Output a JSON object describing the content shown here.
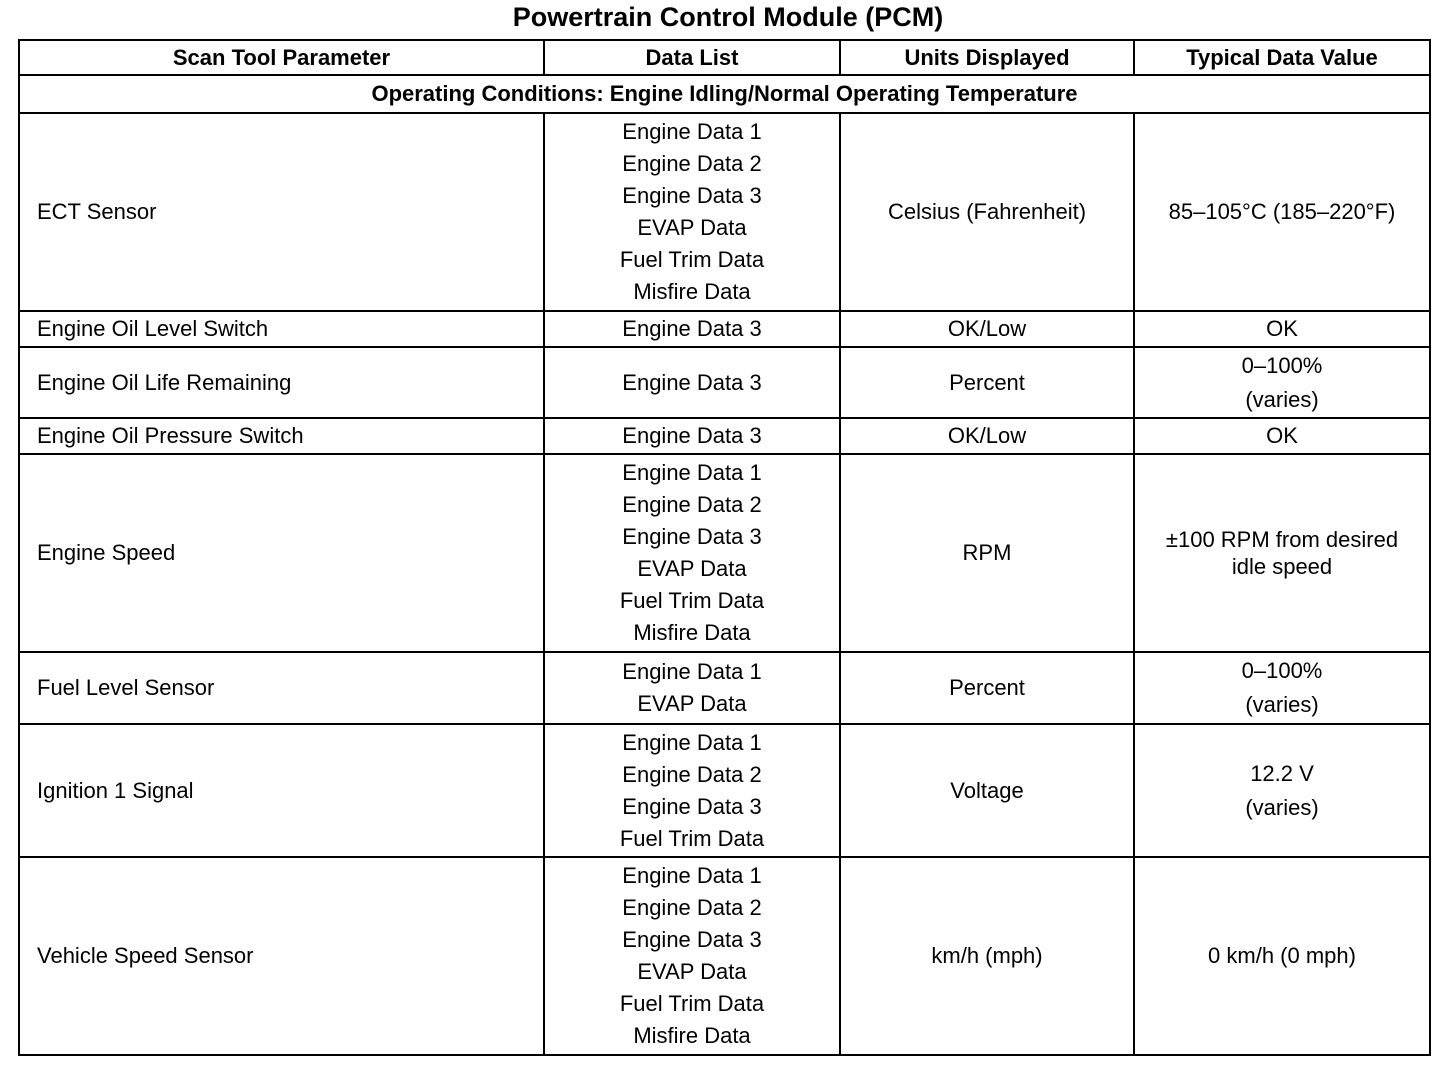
{
  "title": "Powertrain Control Module (PCM)",
  "table": {
    "headers": [
      "Scan Tool Parameter",
      "Data List",
      "Units Displayed",
      "Typical Data Value"
    ],
    "section": "Operating Conditions: Engine Idling/Normal Operating Temperature",
    "rows": [
      {
        "parameter": "ECT Sensor",
        "data_list": [
          "Engine Data 1",
          "Engine Data 2",
          "Engine Data 3",
          "EVAP Data",
          "Fuel Trim Data",
          "Misfire Data"
        ],
        "units": "Celsius (Fahrenheit)",
        "typical": [
          "85–105°C (185–220°F)"
        ]
      },
      {
        "parameter": "Engine Oil Level Switch",
        "data_list": [
          "Engine Data 3"
        ],
        "units": "OK/Low",
        "typical": [
          "OK"
        ]
      },
      {
        "parameter": "Engine Oil Life Remaining",
        "data_list": [
          "Engine Data 3"
        ],
        "units": "Percent",
        "typical": [
          "0–100%",
          "(varies)"
        ]
      },
      {
        "parameter": "Engine Oil Pressure Switch",
        "data_list": [
          "Engine Data 3"
        ],
        "units": "OK/Low",
        "typical": [
          "OK"
        ]
      },
      {
        "parameter": "Engine Speed",
        "data_list": [
          "Engine Data 1",
          "Engine Data 2",
          "Engine Data 3",
          "EVAP Data",
          "Fuel Trim Data",
          "Misfire Data"
        ],
        "units": "RPM",
        "typical": [
          "±100 RPM from desired idle speed"
        ]
      },
      {
        "parameter": "Fuel Level Sensor",
        "data_list": [
          "Engine Data 1",
          "EVAP Data"
        ],
        "units": "Percent",
        "typical": [
          "0–100%",
          "(varies)"
        ]
      },
      {
        "parameter": "Ignition 1 Signal",
        "data_list": [
          "Engine Data 1",
          "Engine Data 2",
          "Engine Data 3",
          "Fuel Trim Data"
        ],
        "units": "Voltage",
        "typical": [
          "12.2 V",
          "(varies)"
        ]
      },
      {
        "parameter": "Vehicle Speed Sensor",
        "data_list": [
          "Engine Data 1",
          "Engine Data 2",
          "Engine Data 3",
          "EVAP Data",
          "Fuel Trim Data",
          "Misfire Data"
        ],
        "units": "km/h (mph)",
        "typical": [
          "0 km/h (0 mph)"
        ]
      }
    ]
  }
}
